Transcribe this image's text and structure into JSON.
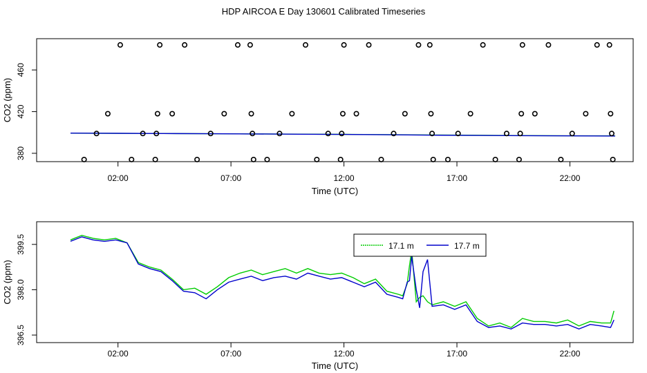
{
  "page": {
    "title": "HDP AIRCOA E  Day 130601  Calibrated Timeseries"
  },
  "chart_data": [
    {
      "type": "scatter",
      "xlabel": "Time (UTC)",
      "ylabel": "CO2 (ppm)",
      "xlim": [
        -1.6,
        24.8
      ],
      "ylim": [
        372,
        490
      ],
      "x_ticks": [
        2,
        7,
        12,
        17,
        22
      ],
      "x_tick_labels": [
        "02:00",
        "07:00",
        "12:00",
        "17:00",
        "22:00"
      ],
      "y_ticks": [
        380,
        420,
        460
      ],
      "y_tick_labels": [
        "380",
        "420",
        "460"
      ],
      "grid": false,
      "series": [
        {
          "color": "#00cc00",
          "line": [
            [
              -0.1,
              399.3
            ],
            [
              2,
              399.1
            ],
            [
              4,
              399.0
            ],
            [
              6,
              398.8
            ],
            [
              8,
              398.6
            ],
            [
              10,
              398.4
            ],
            [
              12,
              398.2
            ],
            [
              14,
              397.9
            ],
            [
              16,
              397.6
            ],
            [
              18,
              397.3
            ],
            [
              20,
              397.0
            ],
            [
              22,
              396.8
            ],
            [
              24,
              396.7
            ]
          ]
        },
        {
          "color": "#0000cc",
          "line": [
            [
              -0.1,
              399.4
            ],
            [
              2,
              399.2
            ],
            [
              4,
              399.0
            ],
            [
              6,
              398.8
            ],
            [
              8,
              398.6
            ],
            [
              10,
              398.3
            ],
            [
              12,
              398.1
            ],
            [
              14,
              397.8
            ],
            [
              16,
              397.4
            ],
            [
              18,
              397.1
            ],
            [
              20,
              396.9
            ],
            [
              22,
              396.7
            ],
            [
              24,
              396.6
            ]
          ]
        }
      ],
      "points": [
        [
          0.5,
          374
        ],
        [
          1.05,
          399
        ],
        [
          1.55,
          418
        ],
        [
          2.1,
          484
        ],
        [
          2.6,
          374
        ],
        [
          3.1,
          399
        ],
        [
          3.65,
          374
        ],
        [
          3.7,
          399
        ],
        [
          3.75,
          418
        ],
        [
          3.85,
          484
        ],
        [
          4.4,
          418
        ],
        [
          4.95,
          484
        ],
        [
          5.5,
          374
        ],
        [
          6.1,
          399
        ],
        [
          6.7,
          418
        ],
        [
          7.3,
          484
        ],
        [
          7.85,
          484
        ],
        [
          7.9,
          418
        ],
        [
          7.95,
          399
        ],
        [
          8,
          374
        ],
        [
          8.6,
          374
        ],
        [
          9.15,
          399
        ],
        [
          9.7,
          418
        ],
        [
          10.3,
          484
        ],
        [
          10.8,
          374
        ],
        [
          11.3,
          399
        ],
        [
          11.85,
          374
        ],
        [
          11.9,
          399
        ],
        [
          11.95,
          418
        ],
        [
          12,
          484
        ],
        [
          12.55,
          418
        ],
        [
          13.1,
          484
        ],
        [
          13.65,
          374
        ],
        [
          14.2,
          399
        ],
        [
          14.7,
          418
        ],
        [
          15.3,
          484
        ],
        [
          15.8,
          484
        ],
        [
          15.85,
          418
        ],
        [
          15.9,
          399
        ],
        [
          15.95,
          374
        ],
        [
          16.6,
          374
        ],
        [
          17.05,
          399
        ],
        [
          17.6,
          418
        ],
        [
          18.15,
          484
        ],
        [
          18.7,
          374
        ],
        [
          19.2,
          399
        ],
        [
          19.75,
          374
        ],
        [
          19.8,
          399
        ],
        [
          19.85,
          418
        ],
        [
          19.9,
          484
        ],
        [
          20.45,
          418
        ],
        [
          21.05,
          484
        ],
        [
          21.6,
          374
        ],
        [
          22.1,
          399
        ],
        [
          22.7,
          418
        ],
        [
          23.2,
          484
        ],
        [
          23.75,
          484
        ],
        [
          23.8,
          418
        ],
        [
          23.85,
          399
        ],
        [
          23.9,
          374
        ]
      ]
    },
    {
      "type": "line",
      "xlabel": "Time (UTC)",
      "ylabel": "CO2 (ppm)",
      "xlim": [
        -1.6,
        24.8
      ],
      "ylim": [
        396.25,
        400.25
      ],
      "x_ticks": [
        2,
        7,
        12,
        17,
        22
      ],
      "x_tick_labels": [
        "02:00",
        "07:00",
        "12:00",
        "17:00",
        "22:00"
      ],
      "y_ticks": [
        396.5,
        398.0,
        399.5
      ],
      "y_tick_labels": [
        "396.5",
        "398.0",
        "399.5"
      ],
      "grid": false,
      "legend": "top-center",
      "series": [
        {
          "name": "17.1 m",
          "color": "#00cc00",
          "x": [
            -0.1,
            0.4,
            0.9,
            1.4,
            1.9,
            2.4,
            2.9,
            3.4,
            3.9,
            4.4,
            4.9,
            5.4,
            5.9,
            6.4,
            6.9,
            7.4,
            7.9,
            8.4,
            8.9,
            9.4,
            9.9,
            10.4,
            10.9,
            11.4,
            11.9,
            12.4,
            12.9,
            13.4,
            13.9,
            14.4,
            14.6,
            14.8,
            14.9,
            15.0,
            15.2,
            15.35,
            15.5,
            15.7,
            15.9,
            16.4,
            16.9,
            17.4,
            17.9,
            18.4,
            18.9,
            19.4,
            19.9,
            20.4,
            20.9,
            21.4,
            21.9,
            22.4,
            22.9,
            23.4,
            23.8,
            23.95
          ],
          "y": [
            399.65,
            399.8,
            399.7,
            399.65,
            399.7,
            399.55,
            398.9,
            398.75,
            398.65,
            398.35,
            398.0,
            398.05,
            397.85,
            398.1,
            398.4,
            398.55,
            398.65,
            398.5,
            398.6,
            398.7,
            398.55,
            398.7,
            398.55,
            398.5,
            398.55,
            398.4,
            398.2,
            398.35,
            397.95,
            397.85,
            397.8,
            398.2,
            398.8,
            399.3,
            397.6,
            397.75,
            397.8,
            397.6,
            397.5,
            397.6,
            397.45,
            397.6,
            397.05,
            396.8,
            396.9,
            396.75,
            397.05,
            396.95,
            396.95,
            396.9,
            397.0,
            396.8,
            396.95,
            396.9,
            396.9,
            397.3
          ]
        },
        {
          "name": "17.7 m",
          "color": "#0000cc",
          "x": [
            -0.1,
            0.4,
            0.9,
            1.4,
            1.9,
            2.4,
            2.9,
            3.4,
            3.9,
            4.4,
            4.9,
            5.4,
            5.9,
            6.4,
            6.9,
            7.4,
            7.9,
            8.4,
            8.9,
            9.4,
            9.9,
            10.4,
            10.9,
            11.4,
            11.9,
            12.4,
            12.9,
            13.4,
            13.9,
            14.4,
            14.6,
            14.8,
            14.9,
            15.0,
            15.2,
            15.35,
            15.5,
            15.7,
            15.9,
            16.4,
            16.9,
            17.4,
            17.9,
            18.4,
            18.9,
            19.4,
            19.9,
            20.4,
            20.9,
            21.4,
            21.9,
            22.4,
            22.9,
            23.4,
            23.8,
            23.95
          ],
          "y": [
            399.6,
            399.75,
            399.65,
            399.6,
            399.65,
            399.55,
            398.85,
            398.7,
            398.6,
            398.3,
            397.95,
            397.9,
            397.7,
            398.0,
            398.25,
            398.35,
            398.45,
            398.3,
            398.4,
            398.45,
            398.35,
            398.55,
            398.45,
            398.35,
            398.4,
            398.25,
            398.1,
            398.25,
            397.85,
            397.75,
            397.7,
            398.25,
            398.3,
            399.1,
            398.0,
            397.4,
            398.6,
            399.0,
            397.45,
            397.5,
            397.35,
            397.5,
            396.95,
            396.75,
            396.8,
            396.7,
            396.9,
            396.85,
            396.85,
            396.8,
            396.85,
            396.7,
            396.85,
            396.8,
            396.75,
            397.0
          ]
        }
      ]
    }
  ]
}
